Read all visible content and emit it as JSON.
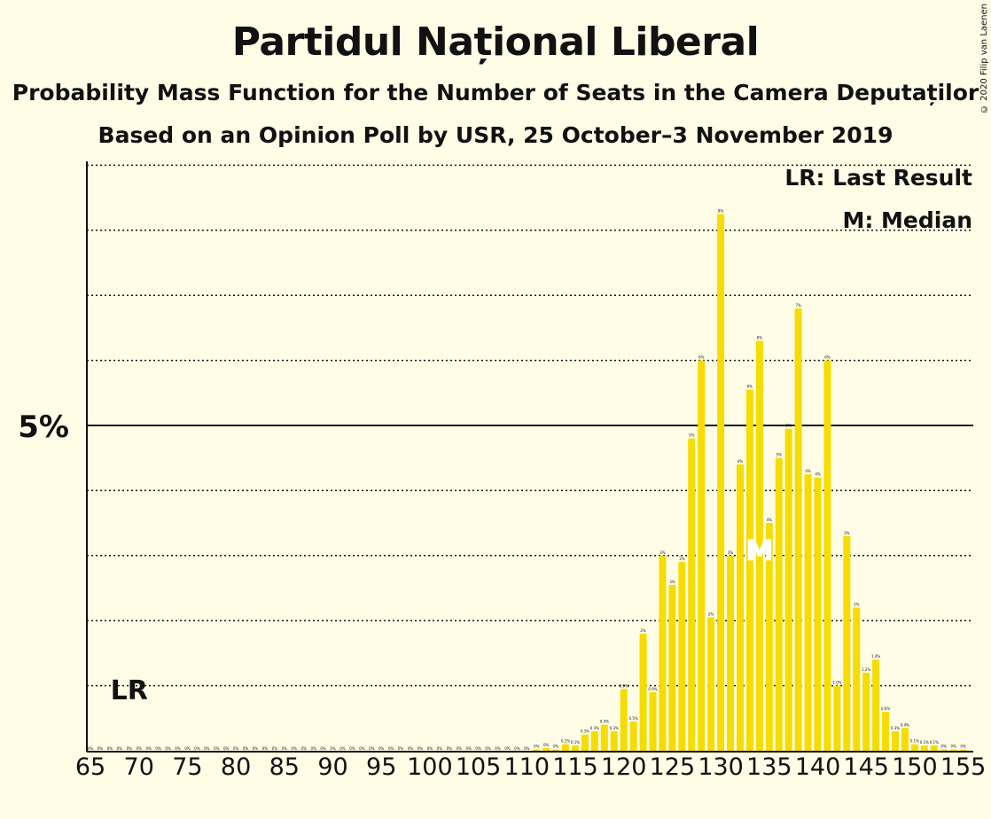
{
  "title": "Partidul Național Liberal",
  "subtitle1": "Probability Mass Function for the Number of Seats in the Camera Deputaților",
  "subtitle2": "Based on an Opinion Poll by USR, 25 October–3 November 2019",
  "copyright": "© 2020 Filip van Laenen",
  "colors": {
    "bar": "#f6dc00",
    "background": "#fffde6",
    "text": "#111111"
  },
  "chart_data": {
    "type": "bar",
    "title": "Partidul Național Liberal",
    "ylabel": "",
    "xlabel": "",
    "y_tick_label": "5%",
    "y_tick_value": 5,
    "ylim": [
      0,
      9
    ],
    "grid": "dotted lines every 1%",
    "legend": [
      "LR: Last Result",
      "M: Median"
    ],
    "legend_placement": "top-right",
    "last_result": {
      "seat": 69,
      "label": "LR"
    },
    "median": {
      "seat": 134,
      "label": "M"
    },
    "x_ticks": [
      "65",
      "70",
      "75",
      "80",
      "85",
      "90",
      "95",
      "100",
      "105",
      "110",
      "115",
      "120",
      "125",
      "130",
      "135",
      "140",
      "145",
      "150",
      "155"
    ],
    "seats": [
      65,
      66,
      67,
      68,
      69,
      70,
      71,
      72,
      73,
      74,
      75,
      76,
      77,
      78,
      79,
      80,
      81,
      82,
      83,
      84,
      85,
      86,
      87,
      88,
      89,
      90,
      91,
      92,
      93,
      94,
      95,
      96,
      97,
      98,
      99,
      100,
      101,
      102,
      103,
      104,
      105,
      106,
      107,
      108,
      109,
      110,
      111,
      112,
      113,
      114,
      115,
      116,
      117,
      118,
      119,
      120,
      121,
      122,
      123,
      124,
      125,
      126,
      127,
      128,
      129,
      130,
      131,
      132,
      133,
      134,
      135,
      136,
      137,
      138,
      139,
      140,
      141,
      142,
      143,
      144,
      145,
      146,
      147,
      148,
      149,
      150,
      151,
      152,
      153,
      154,
      155
    ],
    "values": [
      0,
      0,
      0,
      0,
      0,
      0,
      0,
      0,
      0,
      0,
      0,
      0,
      0,
      0,
      0,
      0,
      0,
      0,
      0,
      0,
      0,
      0,
      0,
      0,
      0,
      0,
      0,
      0,
      0,
      0,
      0,
      0,
      0,
      0,
      0,
      0,
      0,
      0,
      0,
      0,
      0,
      0,
      0,
      0,
      0,
      0,
      0.02,
      0.04,
      0.02,
      0.1,
      0.08,
      0.25,
      0.3,
      0.4,
      0.3,
      0.95,
      0.45,
      1.8,
      0.9,
      3.0,
      2.55,
      2.9,
      4.8,
      6.0,
      2.05,
      8.25,
      3.0,
      4.4,
      5.55,
      6.3,
      3.5,
      4.5,
      4.95,
      6.8,
      4.25,
      4.2,
      6.0,
      1.0,
      3.3,
      2.2,
      1.2,
      1.4,
      0.6,
      0.3,
      0.35,
      0.1,
      0.08,
      0.08,
      0.02,
      0.02,
      0.02
    ],
    "data_labels": [
      "0%",
      "0%",
      "0%",
      "0%",
      "0%",
      "0%",
      "0%",
      "0%",
      "0%",
      "0%",
      "0%",
      "0%",
      "0%",
      "0%",
      "0%",
      "0%",
      "0%",
      "0%",
      "0%",
      "0%",
      "0%",
      "0%",
      "0%",
      "0%",
      "0%",
      "0%",
      "0%",
      "0%",
      "0%",
      "0%",
      "0%",
      "0%",
      "0%",
      "0%",
      "0%",
      "0%",
      "0%",
      "0%",
      "0%",
      "0%",
      "0%",
      "0%",
      "0%",
      "0%",
      "0%",
      "0%",
      "0%",
      "0%",
      "0%",
      "0.1%",
      "0.1%",
      "0.3%",
      "0.3%",
      "0.4%",
      "0.3%",
      "0.9%",
      "0.5%",
      "2%",
      "0.9%",
      "3%",
      "3%",
      "3%",
      "5%",
      "6%",
      "2%",
      "8%",
      "3%",
      "4%",
      "6%",
      "6%",
      "4%",
      "5%",
      "5%",
      "7%",
      "4%",
      "4%",
      "6%",
      "1.0%",
      "3%",
      "2%",
      "1.2%",
      "1.4%",
      "0.6%",
      "0.3%",
      "0.4%",
      "0.1%",
      "0.1%",
      "0.1%",
      "0%",
      "0%",
      "0%"
    ]
  }
}
